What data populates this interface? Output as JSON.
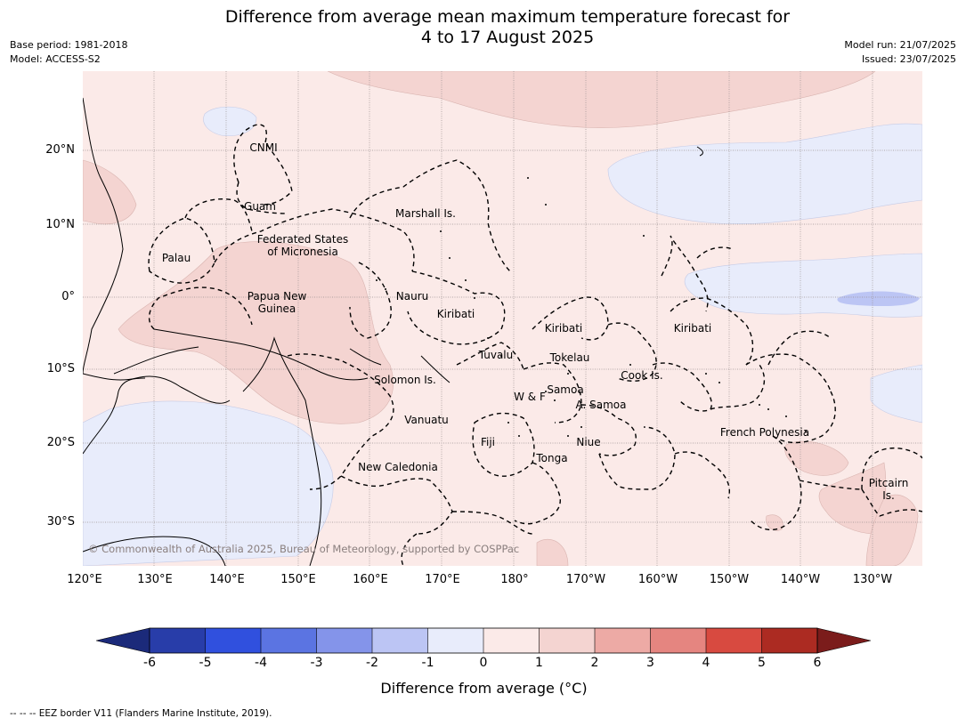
{
  "title": {
    "line1": "Difference from average mean maximum temperature forecast for",
    "line2": "4 to 17 August 2025"
  },
  "meta_left": {
    "base_period": "Base period: 1981-2018",
    "model": "Model: ACCESS-S2"
  },
  "meta_right": {
    "model_run": "Model run: 21/07/2025",
    "issued": "Issued: 23/07/2025"
  },
  "map": {
    "lat_labels": [
      "20°N",
      "10°N",
      "0°",
      "10°S",
      "20°S",
      "30°S"
    ],
    "lon_labels": [
      "120°E",
      "130°E",
      "140°E",
      "150°E",
      "160°E",
      "170°E",
      "180°",
      "170°W",
      "160°W",
      "150°W",
      "140°W",
      "130°W"
    ],
    "regions": [
      "CNMI",
      "Guam",
      "Marshall Is.",
      "Palau",
      "Federated States",
      "of Micronesia",
      "Papua New",
      "Guinea",
      "Nauru",
      "Kiribati",
      "Kiribati",
      "Kiribati",
      "Tuvalu",
      "Tokelau",
      "Cook Is.",
      "Solomon Is.",
      "Samoa",
      "W & F",
      "A. Samoa",
      "Vanuatu",
      "Fiji",
      "Niue",
      "French Polynesia",
      "Tonga",
      "New Caledonia",
      "Pitcairn",
      "Is."
    ],
    "copyright": "© Commonwealth of Australia 2025, Bureau of Meteorology, supported by COSPPac"
  },
  "colorbar": {
    "ticks": [
      "-6",
      "-5",
      "-4",
      "-3",
      "-2",
      "-1",
      "0",
      "1",
      "2",
      "3",
      "4",
      "5",
      "6"
    ],
    "colors": [
      "#1b2a7a",
      "#283da9",
      "#3050de",
      "#5b74e2",
      "#8494ea",
      "#bcc5f4",
      "#e8ecfb",
      "#fbeae8",
      "#f4d4d1",
      "#edaaa5",
      "#e58580",
      "#d84a40",
      "#ac2b22",
      "#7b1c1b"
    ],
    "label": "Difference from average (°C)"
  },
  "footer": "--  --  -- EEZ border V11 (Flanders Marine Institute, 2019)."
}
